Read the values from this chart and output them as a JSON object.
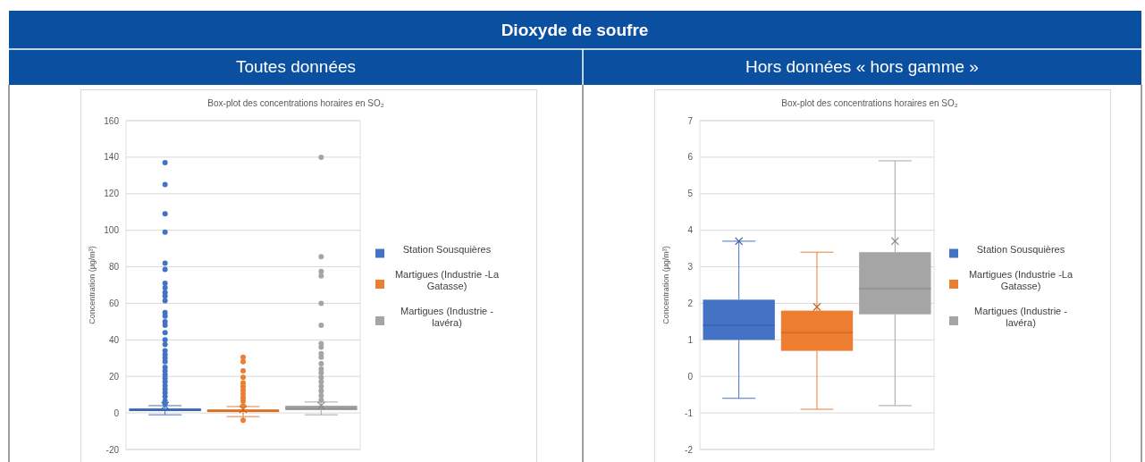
{
  "chart_data": [
    {
      "type": "box",
      "title": "Box-plot des concentrations horaires en SO₂",
      "subtitle": "Toutes données",
      "annotations": [
        "Dioxyde de soufre"
      ],
      "ylabel": "Concentration (µg/m³)",
      "categories": [
        null,
        null,
        null
      ],
      "ylim": [
        -20,
        160
      ],
      "yticks": [
        -20,
        0,
        20,
        40,
        60,
        80,
        100,
        120,
        140,
        160
      ],
      "grid": "y",
      "legend": "right",
      "series": [
        {
          "name": "Station Sousquières",
          "color": "#4472c4",
          "boxes": [
            {
              "low": -1,
              "q1": 1,
              "median": 1.5,
              "q3": 2.5,
              "high": 4,
              "mean": 4,
              "outliers": [
                137,
                125,
                109,
                99,
                82,
                78.5,
                71,
                68.5,
                66,
                64,
                61.5,
                55,
                53,
                50,
                48,
                44,
                40,
                37.5,
                34,
                32,
                30,
                28,
                25,
                23,
                21,
                19,
                17,
                15,
                13,
                11,
                9,
                6.5,
                5
              ]
            },
            null,
            null
          ]
        },
        {
          "name": "Martigues (Industrie -La Gatasse)",
          "color": "#ed7d31",
          "boxes": [
            null,
            {
              "low": -2,
              "q1": 0.5,
              "median": 1,
              "q3": 2,
              "high": 3.5,
              "mean": 2,
              "outliers": [
                30.5,
                28,
                23,
                19.5,
                16.5,
                14.5,
                12.5,
                10.5,
                8.5,
                6.5,
                4,
                -4
              ]
            },
            null
          ]
        },
        {
          "name": "Martigues (Industrie - lavéra)",
          "color": "#a5a5a5",
          "boxes": [
            null,
            null,
            {
              "low": -1,
              "q1": 1.5,
              "median": 2.5,
              "q3": 4,
              "high": 6,
              "mean": 4,
              "outliers": [
                140,
                85.5,
                77.5,
                75,
                60,
                48,
                38,
                36,
                32.5,
                30.5,
                27,
                24,
                22,
                19.5,
                17,
                14.5,
                12,
                9.5,
                7
              ]
            }
          ]
        }
      ]
    },
    {
      "type": "box",
      "title": "Box-plot des concentrations horaires en SO₂",
      "subtitle": "Hors données « hors gamme »",
      "ylabel": "Concentration (µg/m³)",
      "categories": [
        null,
        null,
        null
      ],
      "ylim": [
        -2,
        7
      ],
      "yticks": [
        -2,
        -1,
        0,
        1,
        2,
        3,
        4,
        5,
        6,
        7
      ],
      "grid": "y",
      "legend": "right",
      "series": [
        {
          "name": "Station Sousquières",
          "color": "#4472c4",
          "boxes": [
            {
              "low": -0.6,
              "q1": 1,
              "median": 1.4,
              "q3": 2.1,
              "high": 3.7,
              "mean": 3.7
            },
            null,
            null
          ]
        },
        {
          "name": "Martigues (Industrie -La Gatasse)",
          "color": "#ed7d31",
          "boxes": [
            null,
            {
              "low": -0.9,
              "q1": 0.7,
              "median": 1.2,
              "q3": 1.8,
              "high": 3.4,
              "mean": 1.9
            },
            null
          ]
        },
        {
          "name": "Martigues (Industrie - lavéra)",
          "color": "#a5a5a5",
          "boxes": [
            null,
            null,
            {
              "low": -0.8,
              "q1": 1.7,
              "median": 2.4,
              "q3": 3.4,
              "high": 5.9,
              "mean": 3.7
            }
          ]
        }
      ]
    }
  ]
}
